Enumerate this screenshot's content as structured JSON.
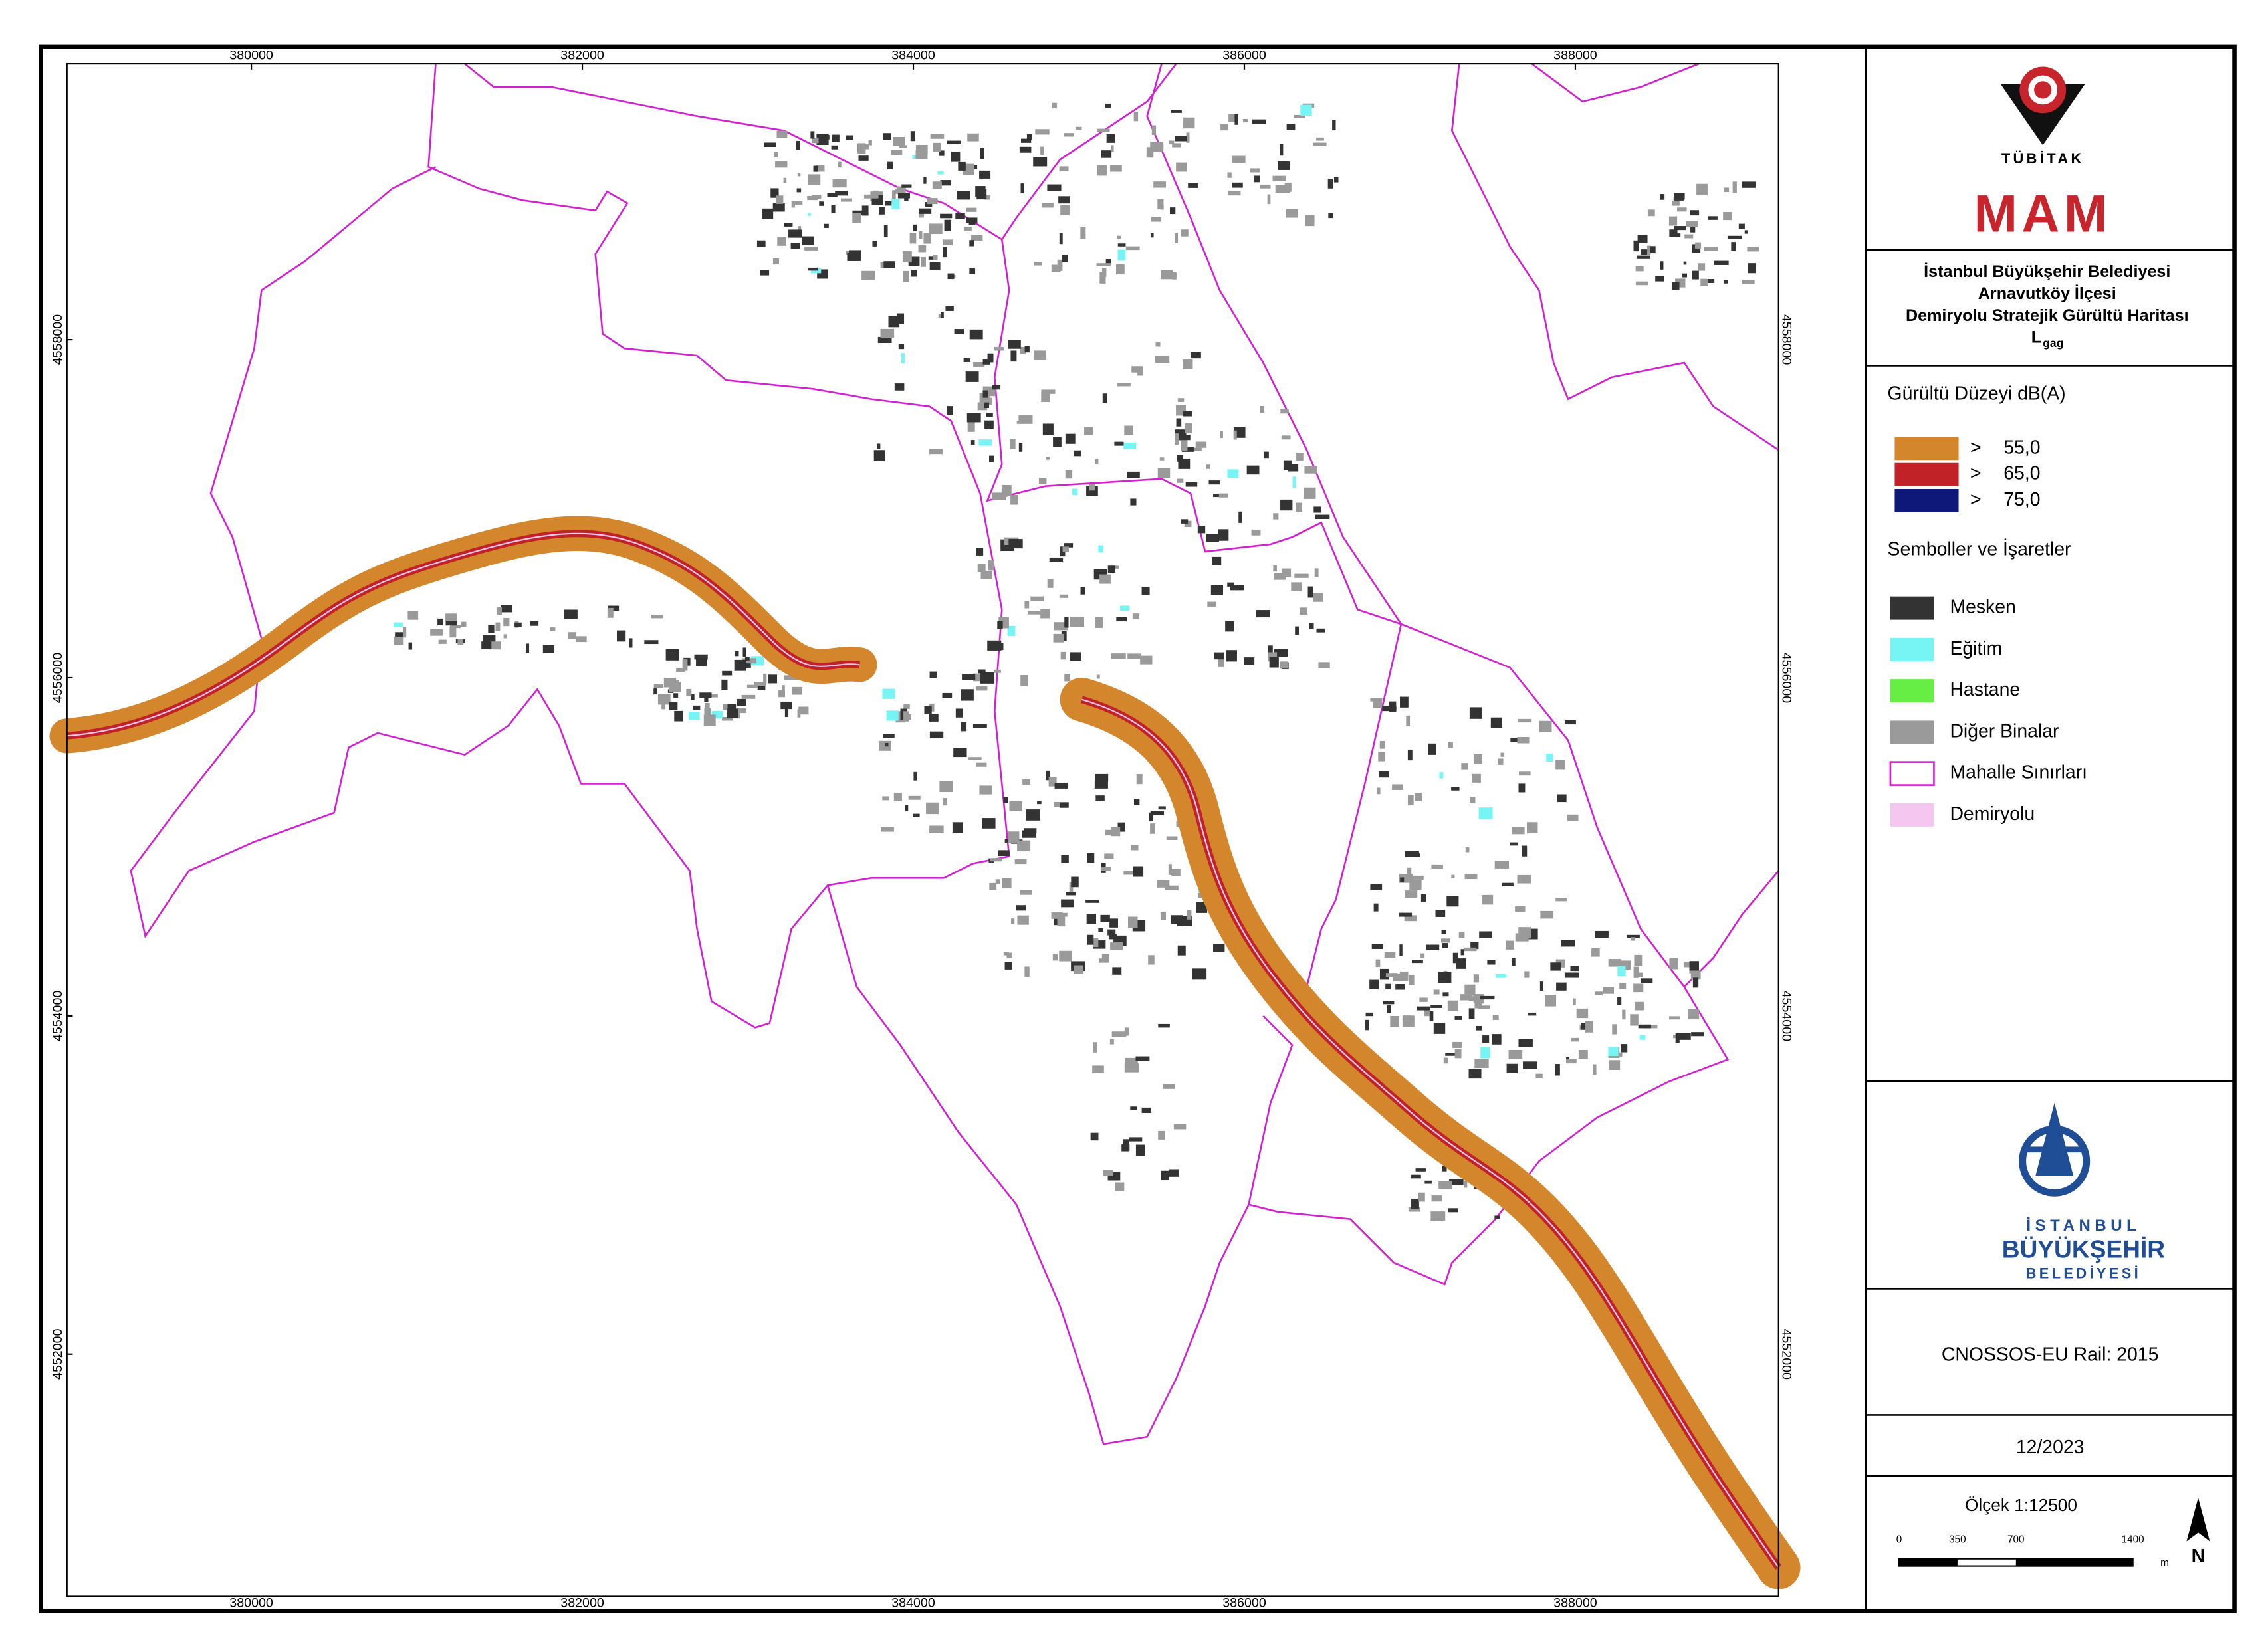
{
  "map": {
    "x_ticks": [
      380000,
      382000,
      384000,
      386000,
      388000
    ],
    "y_ticks": [
      4558000,
      4556000,
      4554000,
      4552000
    ]
  },
  "logo_top": {
    "org": "TÜBİTAK",
    "unit": "MAM"
  },
  "title": {
    "lines": [
      "İstanbul Büyükşehir Belediyesi",
      "Arnavutköy İlçesi",
      "Demiryolu Stratejik Gürültü Haritası"
    ],
    "index": "L",
    "index_sub": "gag"
  },
  "legend": {
    "noise_title": "Gürültü Düzeyi dB(A)",
    "noise_levels": [
      {
        "symbol": ">",
        "label": "55,0",
        "color": "#d4862c"
      },
      {
        "symbol": ">",
        "label": "65,0",
        "color": "#c02228"
      },
      {
        "symbol": ">",
        "label": "75,0",
        "color": "#0e1878"
      }
    ],
    "symbols_title": "Semboller ve İşaretler",
    "symbols": [
      {
        "label": "Mesken",
        "color": "#333333"
      },
      {
        "label": "Eğitim",
        "color": "#77f4f4"
      },
      {
        "label": "Hastane",
        "color": "#66ee44"
      },
      {
        "label": "Diğer Binalar",
        "color": "#9a9a9a"
      },
      {
        "label": "Mahalle Sınırları",
        "color": "#d21fd2"
      },
      {
        "label": "Demiryolu",
        "color": "#f4c6f0"
      }
    ]
  },
  "logo_bottom": {
    "lines": [
      "İSTANBUL",
      "BÜYÜKŞEHİR",
      "BELEDİYESİ"
    ]
  },
  "method": "CNOSSOS-EU Rail: 2015",
  "date": "12/2023",
  "scale": {
    "label": "Ölçek 1:12500",
    "ticks": [
      0,
      350,
      700,
      1400
    ],
    "unit": "m"
  },
  "north": "N"
}
